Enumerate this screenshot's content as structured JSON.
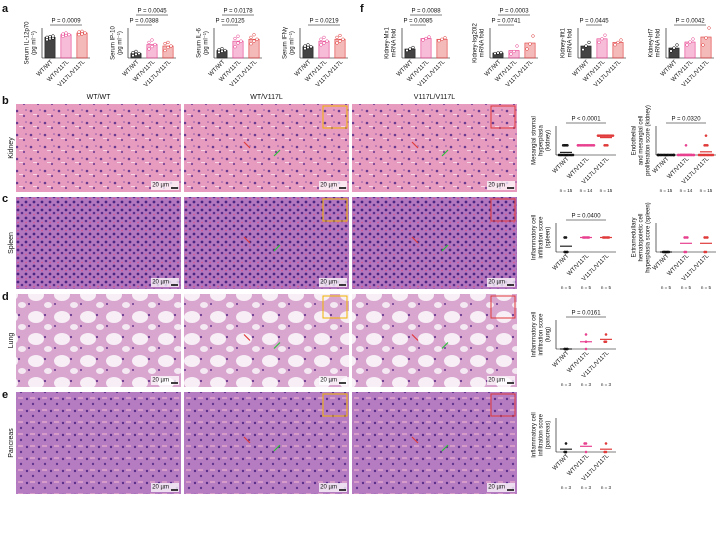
{
  "panel_labels": [
    "a",
    "b",
    "c",
    "d",
    "e",
    "f"
  ],
  "columns": [
    "WT/WT",
    "WT/V117L",
    "V117L/V117L"
  ],
  "tissues": [
    "Kidney",
    "Spleen",
    "Lung",
    "Pancreas"
  ],
  "scale_bar": "20 µm",
  "chart_data": [
    {
      "type": "bar",
      "ylabel": [
        "Serum IL-12p70",
        "(pg ml⁻¹)"
      ],
      "categories": [
        "WT/WT",
        "WT/V117L",
        "V117L/V117L"
      ],
      "colors": [
        "#222222",
        "#e8408f",
        "#e03a3a"
      ],
      "ylim": [
        0,
        90
      ],
      "values": [
        62,
        70,
        75
      ],
      "points": [
        [
          55,
          58,
          60,
          62,
          64,
          66
        ],
        [
          65,
          68,
          70,
          72,
          75
        ],
        [
          70,
          72,
          75,
          78,
          80
        ]
      ],
      "brackets": [
        {
          "between": [
            "WT/WT",
            "V117L/V117L"
          ],
          "label": "P = 0.0009"
        }
      ]
    },
    {
      "type": "bar",
      "ylabel": [
        "Serum IP-10",
        "(pg ml⁻¹)"
      ],
      "categories": [
        "WT/WT",
        "WT/V117L",
        "V117L/V117L"
      ],
      "colors": [
        "#222222",
        "#e8408f",
        "#e03a3a"
      ],
      "ylim": [
        0,
        100
      ],
      "values": [
        15,
        45,
        40
      ],
      "points": [
        [
          8,
          12,
          15,
          18,
          22
        ],
        [
          30,
          38,
          45,
          52,
          60
        ],
        [
          25,
          35,
          40,
          48,
          52
        ]
      ],
      "brackets": [
        {
          "between": [
            "WT/WT",
            "WT/V117L"
          ],
          "label": "P = 0.0388"
        },
        {
          "between": [
            "WT/WT",
            "V117L/V117L"
          ],
          "label": "P = 0.0045"
        }
      ]
    },
    {
      "type": "bar",
      "ylabel": [
        "Serum IL-6",
        "(pg ml⁻¹)"
      ],
      "categories": [
        "WT/WT",
        "WT/V117L",
        "V117L/V117L"
      ],
      "colors": [
        "#222222",
        "#e8408f",
        "#e03a3a"
      ],
      "ylim": [
        0,
        80
      ],
      "values": [
        20,
        45,
        50
      ],
      "points": [
        [
          15,
          18,
          20,
          22,
          25
        ],
        [
          30,
          40,
          45,
          52,
          58
        ],
        [
          38,
          45,
          50,
          55,
          62
        ]
      ],
      "brackets": [
        {
          "between": [
            "WT/WT",
            "WT/V117L"
          ],
          "label": "P = 0.0125"
        },
        {
          "between": [
            "WT/WT",
            "V117L/V117L"
          ],
          "label": "P = 0.0178"
        }
      ]
    },
    {
      "type": "bar",
      "ylabel": [
        "Serum IFNγ",
        "(pg ml⁻¹)"
      ],
      "categories": [
        "WT/WT",
        "WT/V117L",
        "V117L/V117L"
      ],
      "colors": [
        "#222222",
        "#e8408f",
        "#e03a3a"
      ],
      "ylim": [
        0,
        80
      ],
      "values": [
        30,
        45,
        50
      ],
      "points": [
        [
          25,
          28,
          30,
          32,
          35
        ],
        [
          35,
          40,
          45,
          50,
          55
        ],
        [
          40,
          45,
          50,
          55,
          60
        ]
      ],
      "brackets": [
        {
          "between": [
            "WT/WT",
            "V117L/V117L"
          ],
          "label": "P = 0.0219"
        }
      ]
    },
    {
      "type": "bar",
      "ylabel": [
        "Kidney-Mx1",
        "mRNA fold"
      ],
      "categories": [
        "WT/WT",
        "WT/V117L",
        "V117L/V117L"
      ],
      "colors": [
        "#222222",
        "#e8408f",
        "#e03a3a"
      ],
      "ylim": [
        0,
        4
      ],
      "values": [
        1.2,
        2.6,
        2.5
      ],
      "points": [
        [
          1.0,
          1.2,
          1.4
        ],
        [
          2.4,
          2.6,
          2.8
        ],
        [
          2.3,
          2.5,
          2.7
        ]
      ],
      "brackets": [
        {
          "between": [
            "WT/WT",
            "WT/V117L"
          ],
          "label": "P = 0.0085"
        },
        {
          "between": [
            "WT/WT",
            "V117L/V117L"
          ],
          "label": "P = 0.0088"
        }
      ]
    },
    {
      "type": "bar",
      "ylabel": [
        "Kidney-Isg20l2",
        "mRNA fold"
      ],
      "categories": [
        "WT/WT",
        "WT/V117L",
        "V117L/V117L"
      ],
      "colors": [
        "#222222",
        "#e8408f",
        "#e03a3a"
      ],
      "ylim": [
        0,
        6
      ],
      "values": [
        1.0,
        1.5,
        3.0
      ],
      "points": [
        [
          0.9,
          1.0,
          1.1
        ],
        [
          0.8,
          1.3,
          2.4
        ],
        [
          1.8,
          2.8,
          4.4
        ]
      ],
      "brackets": [
        {
          "between": [
            "WT/WT",
            "WT/V117L"
          ],
          "label": "P = 0.0741"
        },
        {
          "between": [
            "WT/WT",
            "V117L/V117L"
          ],
          "label": "P = 0.0003"
        }
      ]
    },
    {
      "type": "bar",
      "ylabel": [
        "Kidney-Ifit1",
        "mRNA fold"
      ],
      "categories": [
        "WT/WT",
        "WT/V117L",
        "V117L/V117L"
      ],
      "colors": [
        "#222222",
        "#e8408f",
        "#e03a3a"
      ],
      "ylim": [
        0,
        2.5
      ],
      "values": [
        1.0,
        1.6,
        1.3
      ],
      "points": [
        [
          0.7,
          1.0,
          1.3
        ],
        [
          1.3,
          1.6,
          1.9
        ],
        [
          1.1,
          1.3,
          1.5
        ]
      ],
      "brackets": [
        {
          "between": [
            "WT/WT",
            "WT/V117L"
          ],
          "label": "P = 0.0445"
        }
      ]
    },
    {
      "type": "bar",
      "ylabel": [
        "Kidney-Irf7",
        "mRNA fold"
      ],
      "categories": [
        "WT/WT",
        "WT/V117L",
        "V117L/V117L"
      ],
      "colors": [
        "#222222",
        "#e8408f",
        "#e03a3a"
      ],
      "ylim": [
        0,
        3
      ],
      "values": [
        1.0,
        1.6,
        2.1
      ],
      "points": [
        [
          0.7,
          1.0,
          1.3
        ],
        [
          1.3,
          1.6,
          1.9
        ],
        [
          1.3,
          2.0,
          3.0
        ]
      ],
      "brackets": [
        {
          "between": [
            "WT/WT",
            "V117L/V117L"
          ],
          "label": "P = 0.0042"
        }
      ]
    },
    {
      "type": "dot",
      "ylabel": [
        "Mesangial stromal",
        "hyperplasia",
        "(kidney)"
      ],
      "categories": [
        "WT/WT",
        "WT/V117L",
        "V117L/V117L"
      ],
      "colors": [
        "#222222",
        "#e8408f",
        "#e03a3a"
      ],
      "ylim": [
        0,
        3
      ],
      "values": [
        0.27,
        1,
        1.8
      ],
      "points": [
        [
          0,
          0,
          0,
          0,
          0,
          0,
          0,
          0,
          0,
          0,
          0,
          1,
          1,
          1,
          1
        ],
        [
          1,
          1,
          1,
          1,
          1,
          1,
          1,
          1,
          1,
          1,
          1,
          1,
          1,
          1
        ],
        [
          1,
          1,
          1,
          2,
          2,
          2,
          2,
          2,
          2,
          2,
          2,
          2,
          2,
          2,
          2
        ]
      ],
      "n_labels": [
        "n = 15",
        "n = 14",
        "n = 15"
      ],
      "brackets": [
        {
          "between": [
            "WT/WT",
            "V117L/V117L"
          ],
          "label": "P < 0.0001"
        }
      ]
    },
    {
      "type": "dot",
      "ylabel": [
        "Endothelial",
        "and mesangial cell",
        "proliferation score (kidney)"
      ],
      "categories": [
        "WT/WT",
        "WT/V117L",
        "V117L/V117L"
      ],
      "colors": [
        "#222222",
        "#e8408f",
        "#e03a3a"
      ],
      "ylim": [
        0,
        3
      ],
      "values": [
        0,
        0.07,
        0.33
      ],
      "points": [
        [
          0,
          0,
          0,
          0,
          0,
          0,
          0,
          0,
          0,
          0,
          0,
          0,
          0,
          0,
          0
        ],
        [
          0,
          0,
          0,
          0,
          0,
          0,
          0,
          0,
          0,
          0,
          0,
          0,
          0,
          1
        ],
        [
          0,
          0,
          0,
          0,
          0,
          0,
          0,
          0,
          0,
          0,
          0,
          1,
          1,
          1,
          2
        ]
      ],
      "n_labels": [
        "n = 15",
        "n = 14",
        "n = 15"
      ],
      "brackets": [
        {
          "between": [
            "WT/WT",
            "V117L/V117L"
          ],
          "label": "P = 0.0320"
        }
      ]
    },
    {
      "type": "dot",
      "ylabel": [
        "Inflammatory cell",
        "infiltration score",
        "(spleen)"
      ],
      "categories": [
        "WT/WT",
        "WT/V117L",
        "V117L/V117L"
      ],
      "colors": [
        "#222222",
        "#e8408f",
        "#e03a3a"
      ],
      "ylim": [
        0,
        2
      ],
      "values": [
        0.4,
        1,
        1
      ],
      "points": [
        [
          0,
          0,
          0,
          1,
          1
        ],
        [
          1,
          1,
          1,
          1,
          1
        ],
        [
          1,
          1,
          1,
          1,
          1
        ]
      ],
      "n_labels": [
        "n = 5",
        "n = 5",
        "n = 5"
      ],
      "brackets": [
        {
          "between": [
            "WT/WT",
            "V117L/V117L"
          ],
          "label": "P = 0.0400"
        }
      ]
    },
    {
      "type": "dot",
      "ylabel": [
        "Extramedullary",
        "hematopoietic cell",
        "hyperplasia score (spleen)"
      ],
      "categories": [
        "WT/WT",
        "WT/V117L",
        "V117L/V117L"
      ],
      "colors": [
        "#222222",
        "#e8408f",
        "#e03a3a"
      ],
      "ylim": [
        0,
        2
      ],
      "values": [
        0,
        0.6,
        0.6
      ],
      "points": [
        [
          0,
          0,
          0,
          0,
          0
        ],
        [
          0,
          0,
          1,
          1,
          1
        ],
        [
          0,
          0,
          1,
          1,
          1
        ]
      ],
      "n_labels": [
        "n = 5",
        "n = 5",
        "n = 5"
      ],
      "brackets": []
    },
    {
      "type": "dot",
      "ylabel": [
        "Inflammatory cell",
        "infiltration score",
        "(lung)"
      ],
      "categories": [
        "WT/WT",
        "WT/V117L",
        "V117L/V117L"
      ],
      "colors": [
        "#222222",
        "#e8408f",
        "#e03a3a"
      ],
      "ylim": [
        0,
        4
      ],
      "values": [
        0,
        1,
        1.33
      ],
      "points": [
        [
          0,
          0,
          0
        ],
        [
          0,
          1,
          2
        ],
        [
          1,
          1,
          2
        ]
      ],
      "n_labels": [
        "n = 3",
        "n = 3",
        "n = 3"
      ],
      "brackets": [
        {
          "between": [
            "WT/WT",
            "V117L/V117L"
          ],
          "label": "P = 0.0161"
        }
      ]
    },
    {
      "type": "dot",
      "ylabel": [
        "Inflammatory cell",
        "infiltration score",
        "(pancreas)"
      ],
      "categories": [
        "WT/WT",
        "WT/V117L",
        "V117L/V117L"
      ],
      "colors": [
        "#222222",
        "#e8408f",
        "#e03a3a"
      ],
      "ylim": [
        0,
        4
      ],
      "values": [
        0.33,
        0.67,
        0.33
      ],
      "points": [
        [
          0,
          0,
          1
        ],
        [
          0,
          1,
          1
        ],
        [
          0,
          0,
          1
        ]
      ],
      "n_labels": [
        "n = 3",
        "n = 3",
        "n = 3"
      ],
      "brackets": []
    }
  ]
}
